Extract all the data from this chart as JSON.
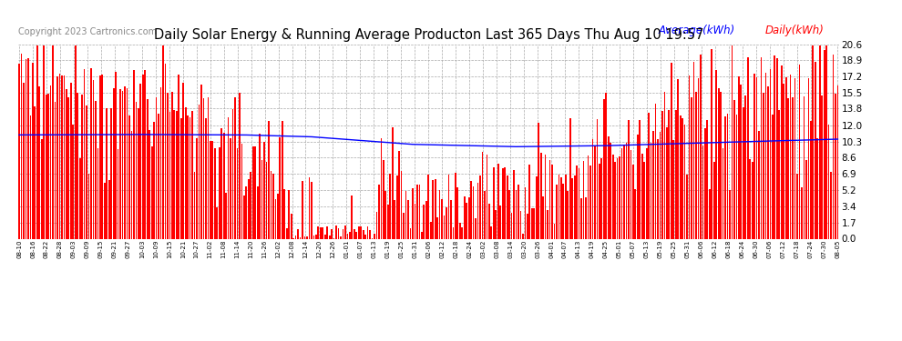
{
  "title": "Daily Solar Energy & Running Average Producton Last 365 Days Thu Aug 10 19:57",
  "copyright": "Copyright 2023 Cartronics.com",
  "legend_average": "Average(kWh)",
  "legend_daily": "Daily(kWh)",
  "bar_color": "#ff0000",
  "avg_line_color": "#0000ff",
  "background_color": "#ffffff",
  "plot_bg_color": "#ffffff",
  "grid_color": "#aaaaaa",
  "title_fontsize": 10.5,
  "copyright_fontsize": 7,
  "legend_fontsize": 8.5,
  "yticks": [
    0.0,
    1.7,
    3.4,
    5.2,
    6.9,
    8.6,
    10.3,
    12.0,
    13.8,
    15.5,
    17.2,
    18.9,
    20.6
  ],
  "ylim": [
    0.0,
    20.6
  ],
  "num_bars": 365,
  "avg_control_x": [
    0,
    50,
    100,
    130,
    175,
    220,
    260,
    310,
    364
  ],
  "avg_control_y": [
    11.0,
    11.05,
    11.0,
    10.8,
    10.0,
    9.75,
    9.85,
    10.2,
    10.55
  ],
  "x_tick_labels": [
    "08-10",
    "08-16",
    "08-22",
    "08-28",
    "09-03",
    "09-09",
    "09-15",
    "09-21",
    "09-27",
    "10-03",
    "10-09",
    "10-15",
    "10-21",
    "10-27",
    "11-02",
    "11-08",
    "11-14",
    "11-20",
    "11-26",
    "12-02",
    "12-08",
    "12-14",
    "12-20",
    "12-26",
    "01-01",
    "01-07",
    "01-13",
    "01-19",
    "01-25",
    "01-31",
    "02-06",
    "02-12",
    "02-18",
    "02-24",
    "03-02",
    "03-08",
    "03-14",
    "03-20",
    "03-26",
    "04-01",
    "04-07",
    "04-13",
    "04-19",
    "04-25",
    "05-01",
    "05-07",
    "05-13",
    "05-19",
    "05-25",
    "05-31",
    "06-06",
    "06-12",
    "06-18",
    "06-24",
    "06-30",
    "07-06",
    "07-12",
    "07-18",
    "07-24",
    "07-30",
    "08-05"
  ]
}
